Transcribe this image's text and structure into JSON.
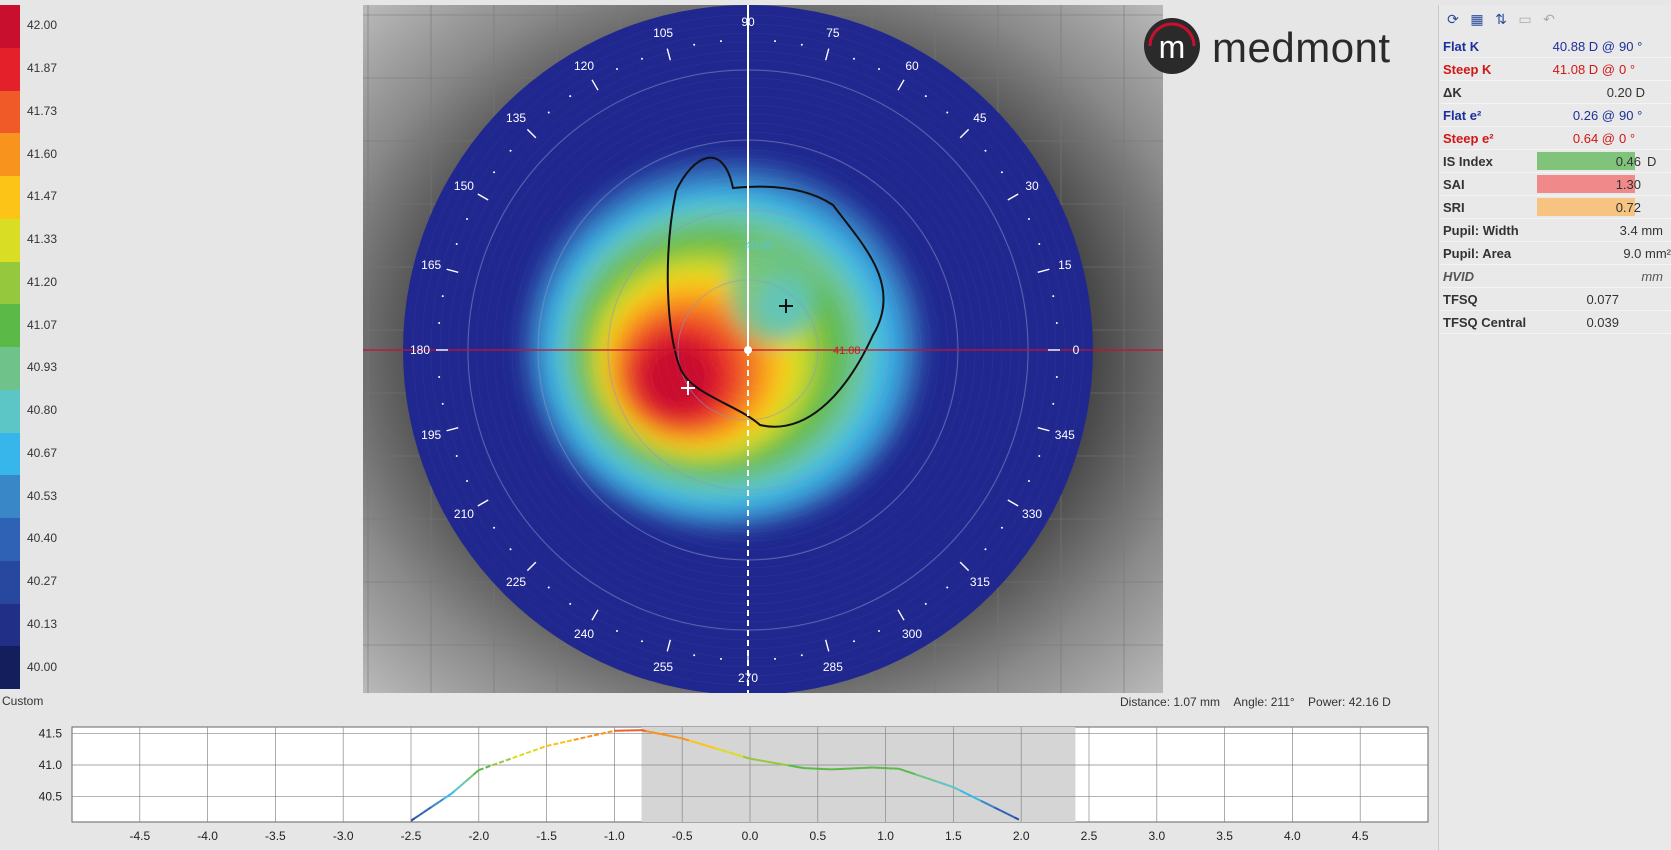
{
  "scale": {
    "labels": [
      "42.00",
      "41.87",
      "41.73",
      "41.60",
      "41.47",
      "41.33",
      "41.20",
      "41.07",
      "40.93",
      "40.80",
      "40.67",
      "40.53",
      "40.40",
      "40.27",
      "40.13",
      "40.00"
    ],
    "colors": [
      "#c8102e",
      "#e4202a",
      "#f05a28",
      "#f8931d",
      "#fcc416",
      "#d9dd24",
      "#96c83d",
      "#5ab947",
      "#6fc38a",
      "#5bc6c5",
      "#36b6ea",
      "#3a87c8",
      "#2f62b4",
      "#2848a0",
      "#212f86",
      "#141e5c"
    ],
    "name": "Custom"
  },
  "map": {
    "axis_labels": [
      "90",
      "75",
      "60",
      "45",
      "30",
      "15",
      "0",
      "345",
      "330",
      "315",
      "300",
      "285",
      "270",
      "255",
      "240",
      "225",
      "210",
      "195",
      "180",
      "165",
      "150",
      "135",
      "120",
      "105"
    ],
    "flat_k_marker": "40.88",
    "steep_k_marker": "41.08",
    "heat_colors": [
      "#c8102e",
      "#e4202a",
      "#f05a28",
      "#f8931d",
      "#fcc416",
      "#d9dd24",
      "#96c83d",
      "#5ab947",
      "#6fc38a",
      "#5bc6c5",
      "#36b6ea",
      "#3a87c8",
      "#2f62b4",
      "#2848a0",
      "#212f86"
    ],
    "background_color": "#20288f"
  },
  "logo": {
    "text": "medmont",
    "mark": "m"
  },
  "readout": {
    "distance": "Distance: 1.07 mm",
    "angle": "Angle: 211°",
    "power": "Power: 42.16 D"
  },
  "toolbar": {
    "icons": [
      "refresh-icon",
      "calendar-icon",
      "sort-icon",
      "save-icon",
      "undo-icon"
    ],
    "glyphs": [
      "⟳",
      "▦",
      "⇅",
      "▭",
      "↶"
    ]
  },
  "stats": {
    "flat_k": {
      "label": "Flat K",
      "value": "40.88 D @",
      "extra": "90 °"
    },
    "steep_k": {
      "label": "Steep K",
      "value": "41.08 D @",
      "extra": "0 °"
    },
    "delta_k": {
      "label": "ΔK",
      "value": "0.20 D"
    },
    "flat_e": {
      "label": "Flat e²",
      "value": "0.26 @",
      "extra": "90 °"
    },
    "steep_e": {
      "label": "Steep e²",
      "value": "0.64 @",
      "extra": "0 °"
    },
    "is_index": {
      "label": "IS Index",
      "value": "0.46",
      "unit": "D",
      "bar_color": "#7fc47a"
    },
    "sai": {
      "label": "SAI",
      "value": "1.30",
      "bar_color": "#f08a8a"
    },
    "sri": {
      "label": "SRI",
      "value": "0.72",
      "bar_color": "#f6c480"
    },
    "pupil_width": {
      "label": "Pupil: Width",
      "value": "3.4 mm"
    },
    "pupil_area": {
      "label": "Pupil: Area",
      "value": "9.0 mm²"
    },
    "hvid": {
      "label": "HVID",
      "value": "mm"
    },
    "tfsq": {
      "label": "TFSQ",
      "value": "0.077"
    },
    "tfsq_central": {
      "label": "TFSQ Central",
      "value": "0.039"
    }
  },
  "profile": {
    "y_ticks": [
      "41.5",
      "41.0",
      "40.5"
    ],
    "x_ticks": [
      "-4.5",
      "-4.0",
      "-3.5",
      "-3.0",
      "-2.5",
      "-2.0",
      "-1.5",
      "-1.0",
      "-0.5",
      "0.0",
      "0.5",
      "1.0",
      "1.5",
      "2.0",
      "2.5",
      "3.0",
      "3.5",
      "4.0",
      "4.5"
    ],
    "points": [
      [
        -2.5,
        40.12
      ],
      [
        -2.2,
        40.55
      ],
      [
        -2.0,
        40.92
      ],
      [
        -1.5,
        41.3
      ],
      [
        -1.0,
        41.54
      ],
      [
        -0.8,
        41.55
      ],
      [
        -0.5,
        41.42
      ],
      [
        0.0,
        41.1
      ],
      [
        0.4,
        40.95
      ],
      [
        0.6,
        40.93
      ],
      [
        0.9,
        40.96
      ],
      [
        1.1,
        40.94
      ],
      [
        1.5,
        40.65
      ],
      [
        2.0,
        40.12
      ]
    ],
    "shaded_range": [
      -0.8,
      2.4
    ]
  }
}
